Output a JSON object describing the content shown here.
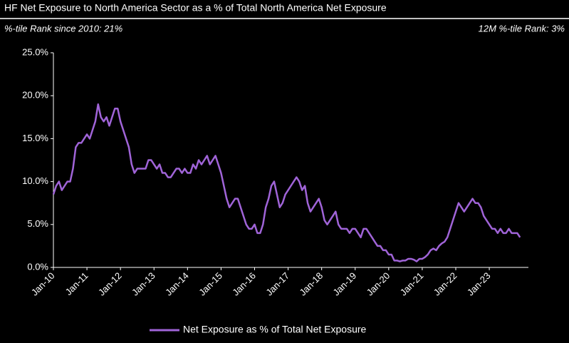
{
  "chart_data": {
    "type": "line",
    "title": "HF Net Exposure to North America Sector as a % of Total North America Net Exposure",
    "subtitle_left": "%-tile Rank since 2010: 21%",
    "subtitle_right": "12M %-tile Rank: 3%",
    "x": [
      "2010-01",
      "2010-02",
      "2010-03",
      "2010-04",
      "2010-05",
      "2010-06",
      "2010-07",
      "2010-08",
      "2010-09",
      "2010-10",
      "2010-11",
      "2010-12",
      "2011-01",
      "2011-02",
      "2011-03",
      "2011-04",
      "2011-05",
      "2011-06",
      "2011-07",
      "2011-08",
      "2011-09",
      "2011-10",
      "2011-11",
      "2011-12",
      "2012-01",
      "2012-02",
      "2012-03",
      "2012-04",
      "2012-05",
      "2012-06",
      "2012-07",
      "2012-08",
      "2012-09",
      "2012-10",
      "2012-11",
      "2012-12",
      "2013-01",
      "2013-02",
      "2013-03",
      "2013-04",
      "2013-05",
      "2013-06",
      "2013-07",
      "2013-08",
      "2013-09",
      "2013-10",
      "2013-11",
      "2013-12",
      "2014-01",
      "2014-02",
      "2014-03",
      "2014-04",
      "2014-05",
      "2014-06",
      "2014-07",
      "2014-08",
      "2014-09",
      "2014-10",
      "2014-11",
      "2014-12",
      "2015-01",
      "2015-02",
      "2015-03",
      "2015-04",
      "2015-05",
      "2015-06",
      "2015-07",
      "2015-08",
      "2015-09",
      "2015-10",
      "2015-11",
      "2015-12",
      "2016-01",
      "2016-02",
      "2016-03",
      "2016-04",
      "2016-05",
      "2016-06",
      "2016-07",
      "2016-08",
      "2016-09",
      "2016-10",
      "2016-11",
      "2016-12",
      "2017-01",
      "2017-02",
      "2017-03",
      "2017-04",
      "2017-05",
      "2017-06",
      "2017-07",
      "2017-08",
      "2017-09",
      "2017-10",
      "2017-11",
      "2017-12",
      "2018-01",
      "2018-02",
      "2018-03",
      "2018-04",
      "2018-05",
      "2018-06",
      "2018-07",
      "2018-08",
      "2018-09",
      "2018-10",
      "2018-11",
      "2018-12",
      "2019-01",
      "2019-02",
      "2019-03",
      "2019-04",
      "2019-05",
      "2019-06",
      "2019-07",
      "2019-08",
      "2019-09",
      "2019-10",
      "2019-11",
      "2019-12",
      "2020-01",
      "2020-02",
      "2020-03",
      "2020-04",
      "2020-05",
      "2020-06",
      "2020-07",
      "2020-08",
      "2020-09",
      "2020-10",
      "2020-11",
      "2020-12",
      "2021-01",
      "2021-02",
      "2021-03",
      "2021-04",
      "2021-05",
      "2021-06",
      "2021-07",
      "2021-08",
      "2021-09",
      "2021-10",
      "2021-11",
      "2021-12",
      "2022-01",
      "2022-02",
      "2022-03",
      "2022-04",
      "2022-05",
      "2022-06",
      "2022-07",
      "2022-08",
      "2022-09",
      "2022-10",
      "2022-11",
      "2022-12",
      "2023-01",
      "2023-02",
      "2023-03",
      "2023-04",
      "2023-05",
      "2023-06",
      "2023-07",
      "2023-08",
      "2023-09",
      "2023-10",
      "2023-11",
      "2023-12"
    ],
    "series": [
      {
        "name": "Net Exposure as % of Total Net Exposure",
        "color": "#a064d8",
        "values": [
          8.5,
          9.5,
          10,
          9,
          9.5,
          10,
          10,
          11.5,
          14,
          14.5,
          14.5,
          15,
          15.5,
          15,
          16,
          17,
          19,
          17.5,
          17,
          17.5,
          16.5,
          17.5,
          18.5,
          18.5,
          17,
          16,
          15,
          14,
          12,
          11,
          11.5,
          11.5,
          11.5,
          11.5,
          12.5,
          12.5,
          12,
          11.5,
          12,
          11,
          11,
          10.5,
          10.5,
          11,
          11.5,
          11.5,
          11,
          11.5,
          11,
          11,
          12,
          11.5,
          12.5,
          12,
          12.5,
          13,
          12,
          12.5,
          13,
          12,
          11,
          9.5,
          8,
          7,
          7.5,
          8,
          8,
          7,
          6,
          5,
          4.5,
          4.5,
          5,
          4,
          4,
          5,
          7,
          8,
          9.5,
          10,
          8.5,
          7,
          7.5,
          8.5,
          9,
          9.5,
          10,
          10.5,
          10,
          9,
          9.5,
          7.5,
          6.5,
          7,
          7.5,
          8,
          7,
          5.5,
          5,
          5.5,
          6,
          6.5,
          5,
          4.5,
          4.5,
          4.5,
          4,
          4.5,
          4.5,
          4,
          3.5,
          4.5,
          4.5,
          4,
          3.5,
          3,
          2.5,
          2.5,
          2,
          2,
          1.5,
          1.5,
          0.8,
          0.8,
          0.7,
          0.8,
          0.8,
          1,
          1,
          0.9,
          0.7,
          1,
          1,
          1.2,
          1.5,
          2,
          2.2,
          2,
          2.5,
          2.8,
          3,
          3.5,
          4.5,
          5.5,
          6.5,
          7.5,
          7,
          6.5,
          7,
          7.5,
          8,
          7.5,
          7.5,
          7,
          6,
          5.5,
          5,
          4.5,
          4.5,
          4,
          4.5,
          4,
          4,
          4.5,
          4,
          4,
          4,
          3.5
        ]
      }
    ],
    "xlim": [
      "2010-01",
      "2024-03"
    ],
    "xticks": [
      {
        "value": "2010-01",
        "label": "Jan-10"
      },
      {
        "value": "2011-01",
        "label": "Jan-11"
      },
      {
        "value": "2012-01",
        "label": "Jan-12"
      },
      {
        "value": "2013-01",
        "label": "Jan-13"
      },
      {
        "value": "2014-01",
        "label": "Jan-14"
      },
      {
        "value": "2015-01",
        "label": "Jan-15"
      },
      {
        "value": "2016-01",
        "label": "Jan-16"
      },
      {
        "value": "2017-01",
        "label": "Jan-17"
      },
      {
        "value": "2018-01",
        "label": "Jan-18"
      },
      {
        "value": "2019-01",
        "label": "Jan-19"
      },
      {
        "value": "2020-01",
        "label": "Jan-20"
      },
      {
        "value": "2021-01",
        "label": "Jan-21"
      },
      {
        "value": "2022-01",
        "label": "Jan-22"
      },
      {
        "value": "2023-01",
        "label": "Jan-23"
      }
    ],
    "ylim": [
      0,
      25
    ],
    "yticks": [
      {
        "value": 0,
        "label": "0.0%"
      },
      {
        "value": 5,
        "label": "5.0%"
      },
      {
        "value": 10,
        "label": "10.0%"
      },
      {
        "value": 15,
        "label": "15.0%"
      },
      {
        "value": 20,
        "label": "20.0%"
      },
      {
        "value": 25,
        "label": "25.0%"
      }
    ],
    "grid": false,
    "legend": "bottom"
  }
}
